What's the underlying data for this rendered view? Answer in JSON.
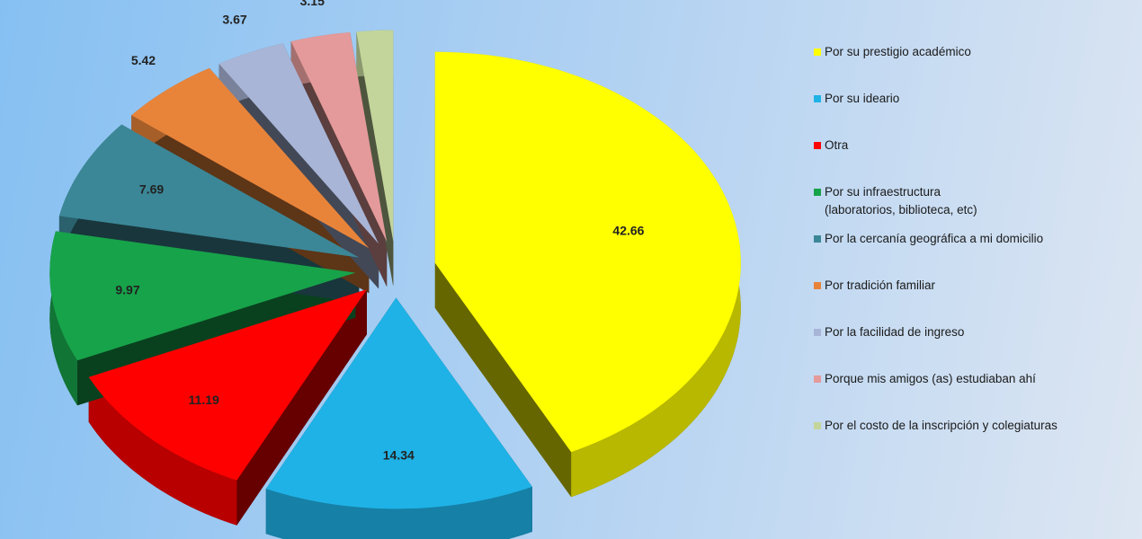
{
  "chart_data": {
    "type": "pie",
    "categories": [
      "Por su prestigio académico",
      "Por su ideario",
      "Otra",
      "Por su infraestructura\n(laboratorios, biblioteca, etc)",
      "Por la cercanía geográfica a mi domicilio",
      "Por tradición familiar",
      "Por la facilidad de ingreso",
      "Porque mis amigos (as) estudiaban ahí",
      "Por el costo de la inscripción y colegiaturas"
    ],
    "values": [
      42.66,
      14.34,
      11.19,
      9.97,
      7.69,
      5.42,
      3.67,
      3.15,
      1.92
    ],
    "colors": [
      "#ffff00",
      "#1fb2e6",
      "#ff0000",
      "#17a34a",
      "#3b8797",
      "#e8843a",
      "#a8b5d6",
      "#e49a9a",
      "#c3d59a"
    ]
  }
}
